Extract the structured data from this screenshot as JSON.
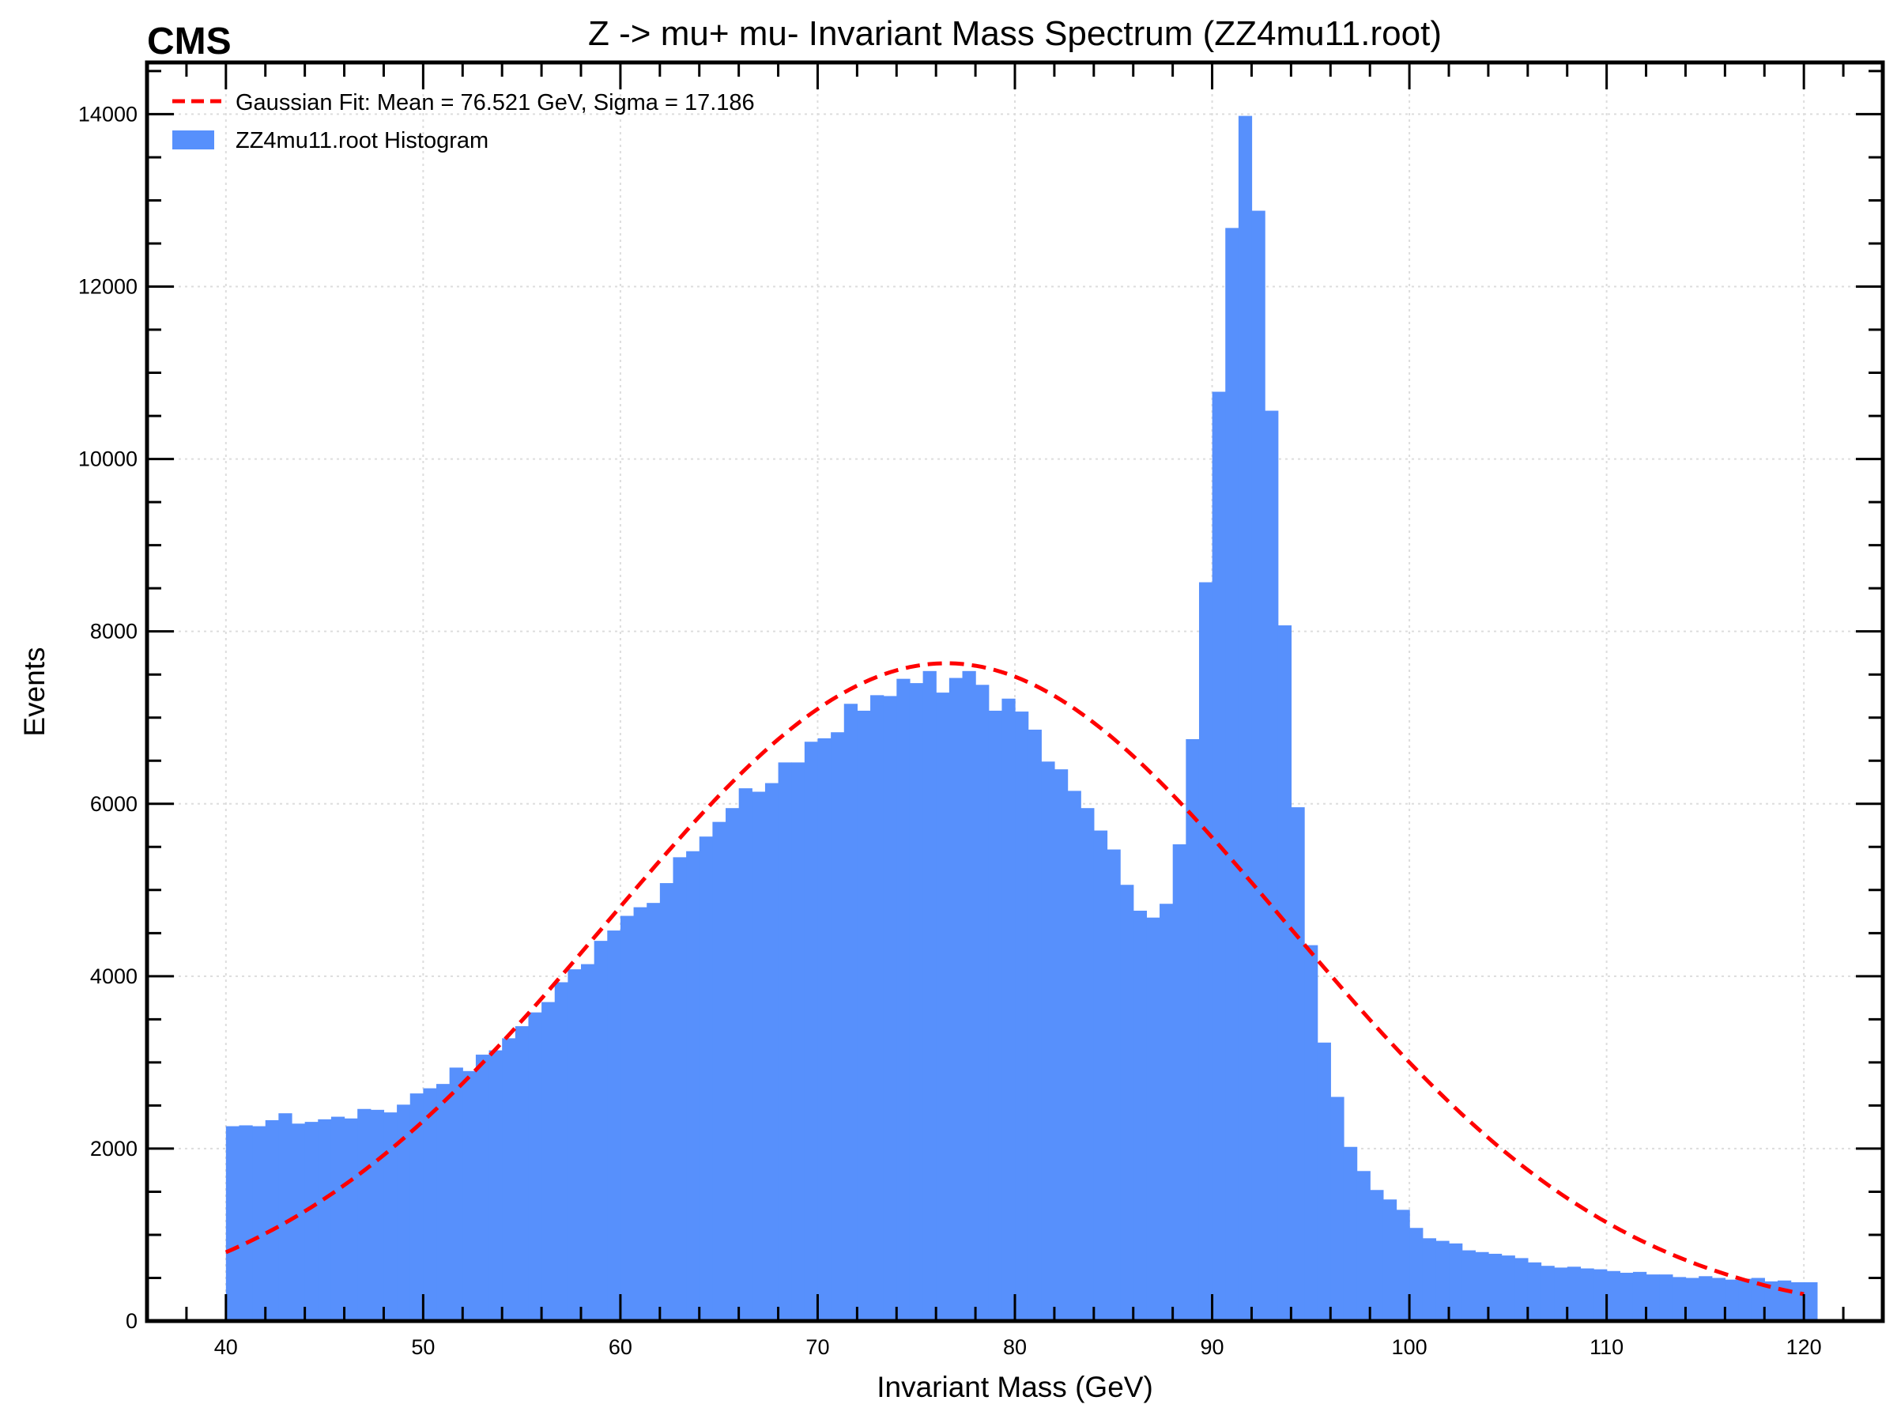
{
  "brand_label": "CMS",
  "chart_data": {
    "type": "bar",
    "title": "Z -> mu+ mu- Invariant Mass Spectrum (ZZ4mu11.root)",
    "xlabel": "Invariant Mass (GeV)",
    "ylabel": "Events",
    "xlim": [
      36,
      124
    ],
    "ylim": [
      0,
      14600
    ],
    "x_ticks": [
      40,
      50,
      60,
      70,
      80,
      90,
      100,
      110,
      120
    ],
    "y_ticks": [
      0,
      2000,
      4000,
      6000,
      8000,
      10000,
      12000,
      14000
    ],
    "grid": true,
    "legend_position": "top-left",
    "bin_width": 0.6667,
    "bin_start": 40,
    "series": [
      {
        "name": "ZZ4mu11.root Histogram",
        "kind": "histogram",
        "color": "#5790fc",
        "values": [
          2260,
          2270,
          2260,
          2330,
          2410,
          2290,
          2310,
          2340,
          2370,
          2350,
          2460,
          2450,
          2420,
          2510,
          2640,
          2700,
          2750,
          2940,
          2900,
          3090,
          3140,
          3280,
          3420,
          3580,
          3700,
          3930,
          4080,
          4140,
          4410,
          4530,
          4700,
          4800,
          4850,
          5080,
          5380,
          5450,
          5620,
          5790,
          5950,
          6180,
          6140,
          6240,
          6480,
          6480,
          6720,
          6760,
          6830,
          7160,
          7080,
          7260,
          7250,
          7450,
          7400,
          7540,
          7290,
          7460,
          7540,
          7380,
          7080,
          7220,
          7070,
          6860,
          6490,
          6400,
          6150,
          5950,
          5690,
          5470,
          5060,
          4760,
          4680,
          4840,
          5530,
          6750,
          8570,
          10780,
          12680,
          13980,
          12880,
          10560,
          8070,
          5960,
          4360,
          3230,
          2600,
          2020,
          1740,
          1520,
          1410,
          1290,
          1080,
          960,
          930,
          900,
          820,
          800,
          780,
          760,
          730,
          680,
          640,
          620,
          630,
          610,
          600,
          580,
          560,
          570,
          540,
          540,
          510,
          500,
          520,
          500,
          480,
          490,
          500,
          460,
          470,
          450,
          450
        ]
      },
      {
        "name": "Gaussian Fit: Mean = 76.521 GeV, Sigma = 17.186",
        "kind": "fit",
        "color": "#ff0000",
        "mean": 76.521,
        "sigma": 17.186,
        "amplitude": 7630,
        "x_range": [
          40,
          120
        ]
      }
    ]
  }
}
